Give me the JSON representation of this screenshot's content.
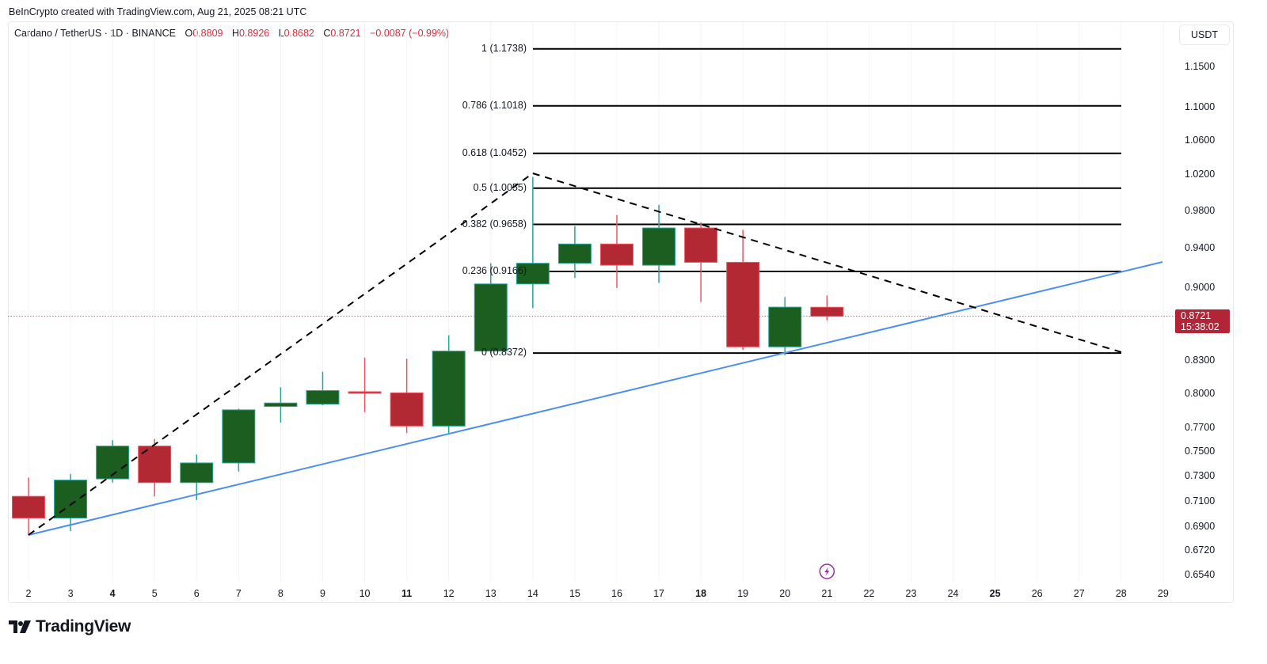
{
  "credit": "BeInCrypto created with TradingView.com, Aug 21, 2025 08:21 UTC",
  "legend": {
    "symbol": "Cardano / TetherUS · 1D · BINANCE",
    "open_label": "O",
    "open": "0.8809",
    "high_label": "H",
    "high": "0.8926",
    "low_label": "L",
    "low": "0.8682",
    "close_label": "C",
    "close": "0.8721",
    "change": "−0.0087 (−0.99%)"
  },
  "currency_button": "USDT",
  "last_price": {
    "value": "0.8721",
    "countdown": "15:38:02"
  },
  "brand": "TradingView",
  "colors": {
    "up_body": "#1b5e20",
    "up_border": "#26a69a",
    "down_body": "#b22833",
    "down_border": "#f05462",
    "trendline": "#4c8ff0",
    "fib_line": "#000000",
    "price_line": "#e0293f"
  },
  "chart_data": {
    "type": "candlestick",
    "title": "Cardano / TetherUS · 1D · BINANCE",
    "xlabel": "",
    "ylabel": "USDT",
    "y_scale": "log",
    "ylim": [
      0.645,
      1.2
    ],
    "y_ticks": [
      "1.1500",
      "1.1000",
      "1.0600",
      "1.0200",
      "0.9800",
      "0.9400",
      "0.9000",
      "0.8300",
      "0.8000",
      "0.7700",
      "0.7500",
      "0.7300",
      "0.7100",
      "0.6900",
      "0.6720",
      "0.6540"
    ],
    "x_ticks": [
      {
        "label": "2",
        "bold": false
      },
      {
        "label": "3",
        "bold": false
      },
      {
        "label": "4",
        "bold": true
      },
      {
        "label": "5",
        "bold": false
      },
      {
        "label": "6",
        "bold": false
      },
      {
        "label": "7",
        "bold": false
      },
      {
        "label": "8",
        "bold": false
      },
      {
        "label": "9",
        "bold": false
      },
      {
        "label": "10",
        "bold": false
      },
      {
        "label": "11",
        "bold": true
      },
      {
        "label": "12",
        "bold": false
      },
      {
        "label": "13",
        "bold": false
      },
      {
        "label": "14",
        "bold": false
      },
      {
        "label": "15",
        "bold": false
      },
      {
        "label": "16",
        "bold": false
      },
      {
        "label": "17",
        "bold": false
      },
      {
        "label": "18",
        "bold": true
      },
      {
        "label": "19",
        "bold": false
      },
      {
        "label": "20",
        "bold": false
      },
      {
        "label": "21",
        "bold": false
      },
      {
        "label": "22",
        "bold": false
      },
      {
        "label": "23",
        "bold": false
      },
      {
        "label": "24",
        "bold": false
      },
      {
        "label": "25",
        "bold": true
      },
      {
        "label": "26",
        "bold": false
      },
      {
        "label": "27",
        "bold": false
      },
      {
        "label": "28",
        "bold": false
      },
      {
        "label": "29",
        "bold": false
      }
    ],
    "candles": [
      {
        "day": "2",
        "open": 0.714,
        "high": 0.729,
        "low": 0.684,
        "close": 0.697
      },
      {
        "day": "3",
        "open": 0.697,
        "high": 0.732,
        "low": 0.687,
        "close": 0.727
      },
      {
        "day": "4",
        "open": 0.728,
        "high": 0.76,
        "low": 0.725,
        "close": 0.755
      },
      {
        "day": "5",
        "open": 0.755,
        "high": 0.761,
        "low": 0.714,
        "close": 0.725
      },
      {
        "day": "6",
        "open": 0.725,
        "high": 0.748,
        "low": 0.711,
        "close": 0.741
      },
      {
        "day": "7",
        "open": 0.741,
        "high": 0.787,
        "low": 0.734,
        "close": 0.786
      },
      {
        "day": "8",
        "open": 0.789,
        "high": 0.806,
        "low": 0.775,
        "close": 0.792
      },
      {
        "day": "9",
        "open": 0.791,
        "high": 0.82,
        "low": 0.79,
        "close": 0.803
      },
      {
        "day": "10",
        "open": 0.802,
        "high": 0.833,
        "low": 0.784,
        "close": 0.801
      },
      {
        "day": "11",
        "open": 0.801,
        "high": 0.832,
        "low": 0.766,
        "close": 0.772
      },
      {
        "day": "12",
        "open": 0.772,
        "high": 0.854,
        "low": 0.765,
        "close": 0.839
      },
      {
        "day": "13",
        "open": 0.839,
        "high": 0.925,
        "low": 0.837,
        "close": 0.904
      },
      {
        "day": "14",
        "open": 0.904,
        "high": 1.018,
        "low": 0.88,
        "close": 0.925
      },
      {
        "day": "15",
        "open": 0.925,
        "high": 0.964,
        "low": 0.91,
        "close": 0.945
      },
      {
        "day": "16",
        "open": 0.945,
        "high": 0.976,
        "low": 0.9,
        "close": 0.923
      },
      {
        "day": "17",
        "open": 0.923,
        "high": 0.987,
        "low": 0.905,
        "close": 0.962
      },
      {
        "day": "18",
        "open": 0.962,
        "high": 0.968,
        "low": 0.886,
        "close": 0.926
      },
      {
        "day": "19",
        "open": 0.926,
        "high": 0.96,
        "low": 0.84,
        "close": 0.843
      },
      {
        "day": "20",
        "open": 0.843,
        "high": 0.891,
        "low": 0.835,
        "close": 0.881
      },
      {
        "day": "21",
        "open": 0.8809,
        "high": 0.8926,
        "low": 0.8682,
        "close": 0.8721
      }
    ],
    "annotations": {
      "fibonacci": [
        {
          "ratio": "1",
          "price": 1.1738,
          "label": "1 (1.1738)"
        },
        {
          "ratio": "0.786",
          "price": 1.1018,
          "label": "0.786 (1.1018)"
        },
        {
          "ratio": "0.618",
          "price": 1.0452,
          "label": "0.618 (1.0452)"
        },
        {
          "ratio": "0.5",
          "price": 1.0055,
          "label": "0.5 (1.0055)"
        },
        {
          "ratio": "0.382",
          "price": 0.9658,
          "label": "0.382 (0.9658)"
        },
        {
          "ratio": "0.236",
          "price": 0.9166,
          "label": "0.236 (0.9166)"
        },
        {
          "ratio": "0",
          "price": 0.8372,
          "label": "0 (0.8372)"
        }
      ],
      "ascending_trendline": {
        "from": {
          "day": "2",
          "price": 0.684
        },
        "to": {
          "day": "29",
          "price": 0.925
        },
        "color": "#4c8ff0"
      },
      "descending_dashed": {
        "from": {
          "day": "14",
          "price": 1.018
        },
        "to": {
          "day": "28",
          "price": 0.837
        }
      },
      "ascending_dashed": {
        "from": {
          "day": "2",
          "price": 0.684
        },
        "to": {
          "day": "14",
          "price": 1.018
        }
      },
      "last_price_line": 0.8721,
      "event_marker": {
        "day": "21",
        "icon": "lightning-icon"
      }
    }
  }
}
